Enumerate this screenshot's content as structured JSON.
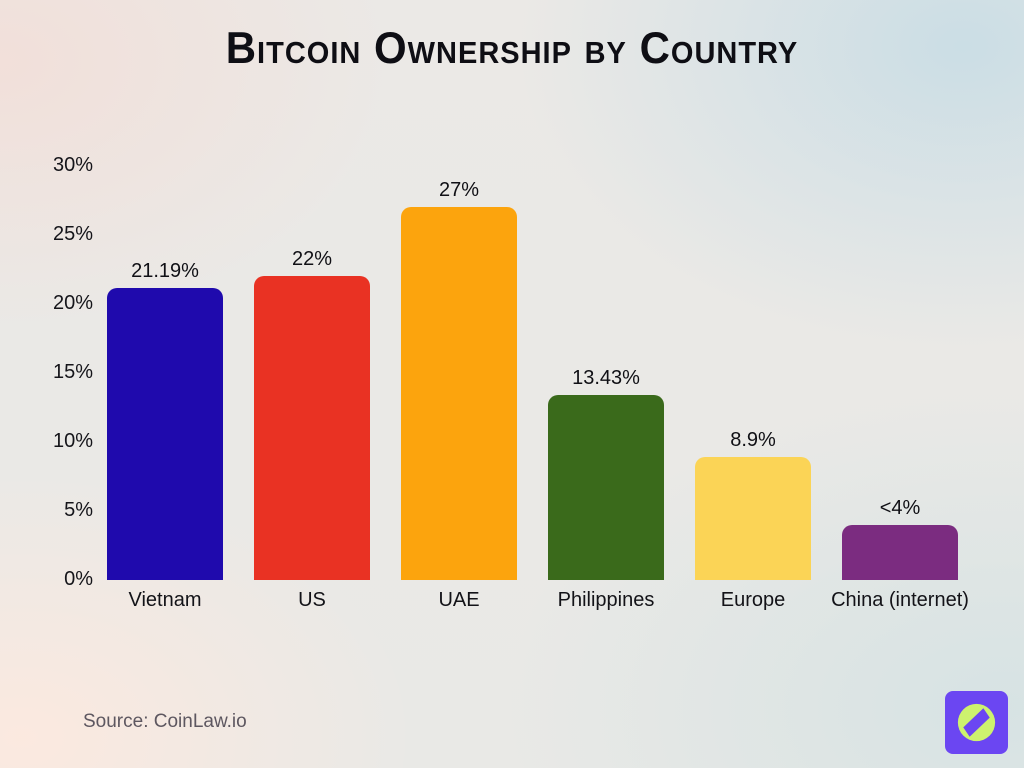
{
  "title": "Bitcoin Ownership by Country",
  "source": "Source: CoinLaw.io",
  "logo": {
    "icon": "compass-icon",
    "background": "#6b46f2",
    "circle_color": "#cdf26e",
    "needle_color": "#6b46f2"
  },
  "chart_data": {
    "type": "bar",
    "title": "Bitcoin Ownership by Country",
    "categories": [
      "Vietnam",
      "US",
      "UAE",
      "Philippines",
      "Europe",
      "China (internet)"
    ],
    "values": [
      21.19,
      22,
      27,
      13.43,
      8.9,
      4
    ],
    "value_labels": [
      "21.19%",
      "22%",
      "27%",
      "13.43%",
      "8.9%",
      "<4%"
    ],
    "colors": [
      "#1f0aad",
      "#e93223",
      "#fca40d",
      "#3a6a1b",
      "#fbd456",
      "#7b2c80"
    ],
    "xlabel": "",
    "ylabel": "",
    "ylim": [
      0,
      30
    ],
    "yticks": [
      0,
      5,
      10,
      15,
      20,
      25,
      30
    ],
    "ytick_labels": [
      "0%",
      "5%",
      "10%",
      "15%",
      "20%",
      "25%",
      "30%"
    ],
    "grid": false,
    "legend": "none",
    "bar_corner_radius": 10
  }
}
